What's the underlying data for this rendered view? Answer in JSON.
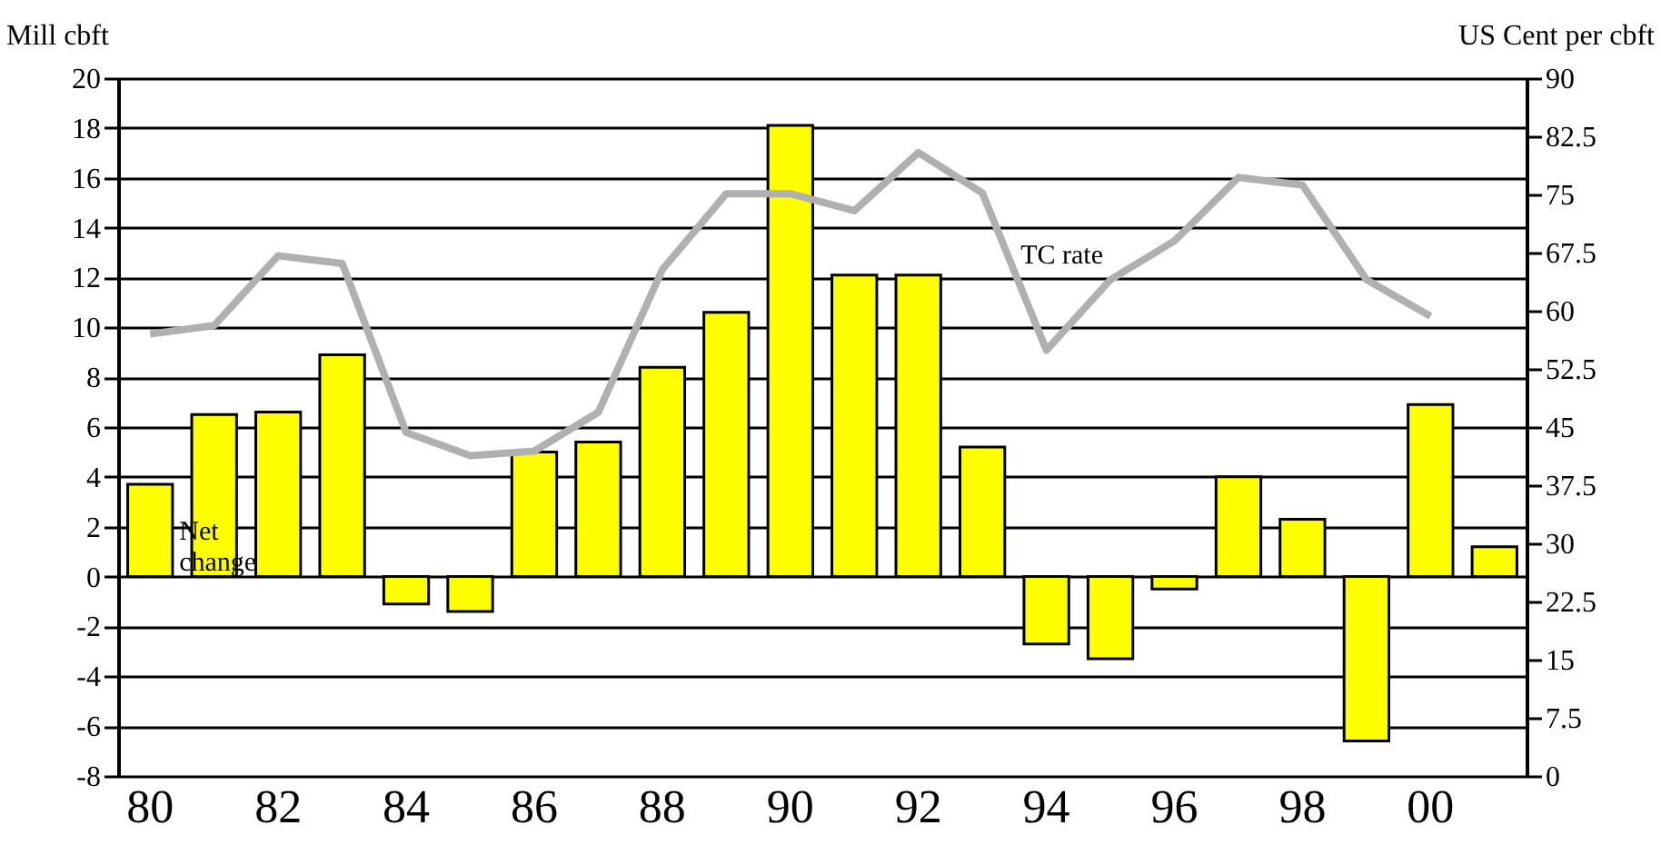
{
  "chart_data": {
    "type": "bar",
    "ylabel": "Mill cbft",
    "y2label": "US Cent per  cbft",
    "categories": [
      "80",
      null,
      "82",
      null,
      "84",
      null,
      "86",
      null,
      "88",
      null,
      "90",
      null,
      "92",
      null,
      "94",
      null,
      "96",
      null,
      "98",
      null,
      "00",
      null
    ],
    "series": [
      {
        "name": "Net change",
        "color": "#ffff00",
        "values": [
          3.7,
          6.5,
          6.6,
          8.9,
          -1.1,
          -1.4,
          5.0,
          5.4,
          8.4,
          10.6,
          18.1,
          12.1,
          12.1,
          5.2,
          -2.7,
          -3.3,
          -0.5,
          4.0,
          2.3,
          -6.6,
          6.9,
          1.2
        ]
      },
      {
        "name": "TC rate",
        "type": "line",
        "axis": "y2",
        "color": "#b0b0b0",
        "values": [
          57.0,
          58.1,
          67.1,
          66.1,
          44.3,
          41.3,
          41.9,
          46.9,
          65.3,
          75.1,
          75.1,
          72.9,
          80.4,
          75.2,
          54.9,
          64.0,
          69.0,
          77.2,
          76.2,
          64.0,
          59.3,
          null
        ]
      }
    ],
    "ylim": [
      -8,
      20
    ],
    "yticks": [
      -8,
      -6,
      -4,
      -2,
      0,
      2,
      4,
      6,
      8,
      10,
      12,
      14,
      16,
      18,
      20
    ],
    "y2lim": [
      0,
      90
    ],
    "y2ticks": [
      0,
      7.5,
      15,
      22.5,
      30,
      37.5,
      45,
      52.5,
      60,
      67.5,
      75,
      82.5,
      90
    ],
    "grid": "y"
  }
}
